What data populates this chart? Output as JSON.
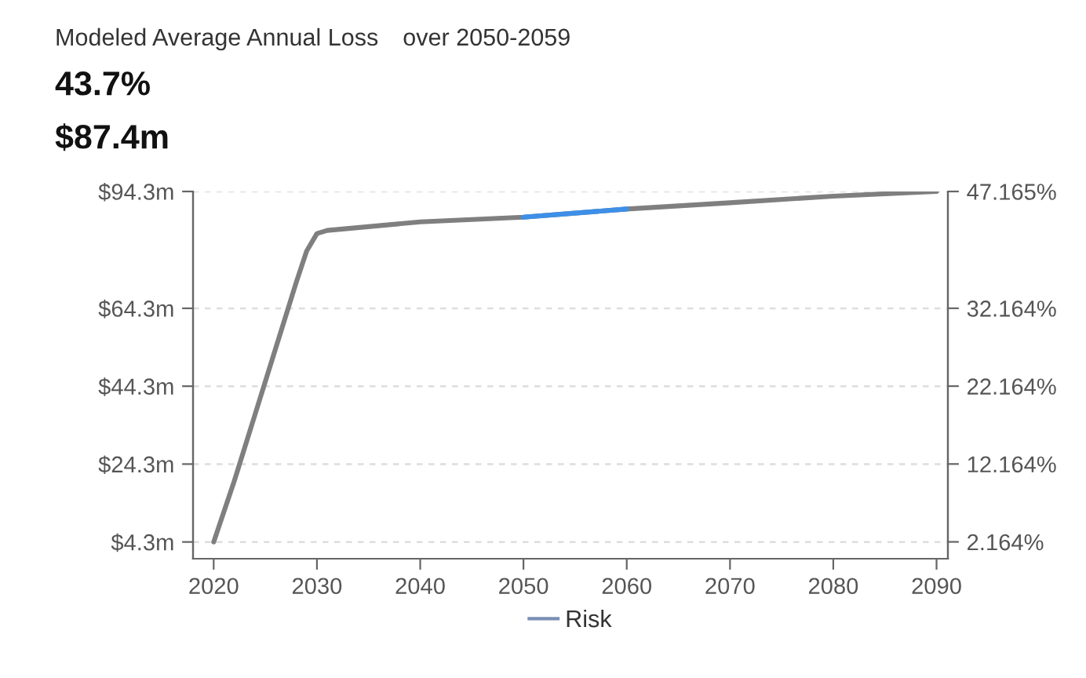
{
  "chart_data": {
    "type": "line",
    "title": "Modeled Average Annual Loss",
    "annotations": [
      "over 2050-2059",
      "43.7%",
      "$87.4m"
    ],
    "series": [
      {
        "name": "Risk",
        "color": "#7f7f7f",
        "x": [
          2020,
          2022,
          2024,
          2026,
          2028,
          2029,
          2030,
          2031,
          2040,
          2050,
          2060,
          2070,
          2080,
          2090
        ],
        "values": [
          4.3,
          20,
          37,
          54,
          71,
          79,
          83.5,
          84.3,
          86.5,
          87.7,
          89.8,
          91.4,
          93.1,
          94.3
        ]
      },
      {
        "color": "#3d8fe8",
        "x": [
          2050,
          2060
        ],
        "values": [
          87.7,
          89.8
        ]
      }
    ],
    "xlim": [
      2018,
      2091.1
    ],
    "xticks": [
      2020,
      2030,
      2040,
      2050,
      2060,
      2070,
      2080,
      2090
    ],
    "ylim": [
      0,
      94.3
    ],
    "yticks": [
      {
        "value": 4.3,
        "label": "$4.3m"
      },
      {
        "value": 24.3,
        "label": "$24.3m"
      },
      {
        "value": 44.3,
        "label": "$44.3m"
      },
      {
        "value": 64.3,
        "label": "$64.3m"
      },
      {
        "value": 94.3,
        "label": "$94.3m"
      }
    ],
    "y2lim": [
      0,
      47.165
    ],
    "y2ticks": [
      {
        "value": 2.164,
        "label": "2.164%"
      },
      {
        "value": 12.164,
        "label": "12.164%"
      },
      {
        "value": 22.164,
        "label": "22.164%"
      },
      {
        "value": 32.164,
        "label": "32.164%"
      },
      {
        "value": 47.165,
        "label": "47.165%"
      }
    ],
    "grid": "y",
    "legend": "bottom",
    "line_style": "solid"
  }
}
